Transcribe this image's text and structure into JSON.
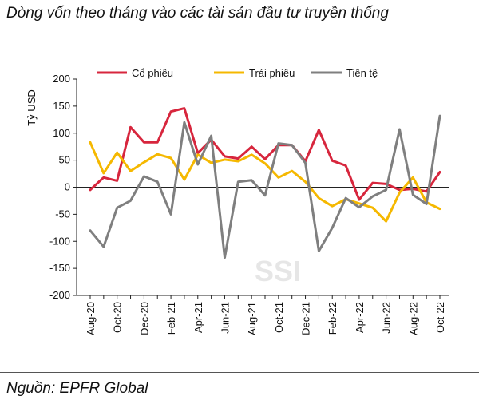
{
  "title": "Dòng vốn theo tháng vào các tài sản đầu tư truyền thống",
  "source": "Nguồn: EPFR Global",
  "watermark": "SSI",
  "chart_data": {
    "type": "line",
    "ylabel": "Tỷ USD",
    "xlabel": "",
    "ylim": [
      -200,
      200
    ],
    "yticks": [
      200,
      150,
      100,
      50,
      0,
      -50,
      -100,
      -150,
      -200
    ],
    "grid": false,
    "legend_position": "top",
    "x": [
      "Aug-20",
      "Sep-20",
      "Oct-20",
      "Nov-20",
      "Dec-20",
      "Jan-21",
      "Feb-21",
      "Mar-21",
      "Apr-21",
      "May-21",
      "Jun-21",
      "Jul-21",
      "Aug-21",
      "Sep-21",
      "Oct-21",
      "Nov-21",
      "Dec-21",
      "Jan-22",
      "Feb-22",
      "Mar-22",
      "Apr-22",
      "May-22",
      "Jun-22",
      "Jul-22",
      "Aug-22",
      "Sep-22",
      "Oct-22"
    ],
    "tick_labels": [
      "Aug-20",
      "Oct-20",
      "Dec-20",
      "Feb-21",
      "Apr-21",
      "Jun-21",
      "Aug-21",
      "Oct-21",
      "Dec-21",
      "Feb-22",
      "Apr-22",
      "Jun-22",
      "Aug-22",
      "Oct-22"
    ],
    "series": [
      {
        "name": "Cổ phiếu",
        "color": "#d7263d",
        "values": [
          -5,
          18,
          12,
          111,
          83,
          83,
          140,
          146,
          63,
          88,
          57,
          53,
          75,
          52,
          78,
          78,
          48,
          106,
          49,
          40,
          -23,
          8,
          6,
          -5,
          -3,
          -8,
          28
        ]
      },
      {
        "name": "Trái phiếu",
        "color": "#f5b800",
        "values": [
          83,
          26,
          64,
          30,
          46,
          61,
          54,
          14,
          60,
          45,
          51,
          48,
          60,
          44,
          18,
          30,
          10,
          -20,
          -35,
          -22,
          -30,
          -38,
          -63,
          -10,
          18,
          -28,
          -40
        ]
      },
      {
        "name": "Tiền tệ",
        "color": "#7f7f7f",
        "values": [
          -80,
          -110,
          -38,
          -25,
          20,
          10,
          -50,
          120,
          42,
          95,
          -130,
          10,
          13,
          -15,
          81,
          78,
          45,
          -118,
          -75,
          -20,
          -37,
          -17,
          -5,
          107,
          -14,
          -31,
          132
        ]
      }
    ]
  }
}
